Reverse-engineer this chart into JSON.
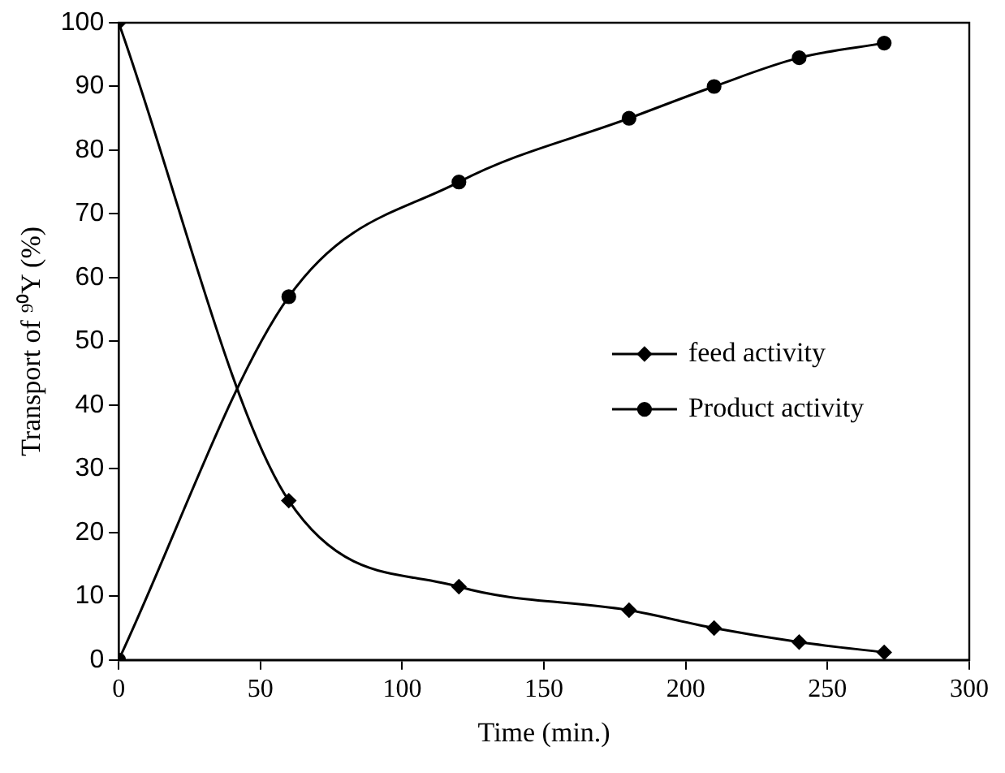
{
  "chart_data": {
    "type": "line",
    "xlabel": "Time (min.)",
    "ylabel": "Transport of ⁹⁰Y (%)",
    "x": [
      0,
      60,
      120,
      180,
      210,
      240,
      270
    ],
    "series": [
      {
        "name": "feed activity",
        "color": "#000000",
        "marker": "diamond",
        "values": [
          100,
          25,
          11.5,
          7.8,
          5,
          2.8,
          1.2
        ]
      },
      {
        "name": "Product activity",
        "color": "#000000",
        "marker": "circle",
        "values": [
          0,
          57,
          75,
          85,
          90,
          94.5,
          96.8
        ]
      }
    ],
    "xlim": [
      0,
      300
    ],
    "xticks": [
      0,
      50,
      100,
      150,
      200,
      250,
      300
    ],
    "ylim": [
      0,
      100
    ],
    "yticks": [
      0,
      10,
      20,
      30,
      40,
      50,
      60,
      70,
      80,
      90,
      100
    ],
    "grid": false,
    "legend": "right",
    "line_style": "solid"
  }
}
